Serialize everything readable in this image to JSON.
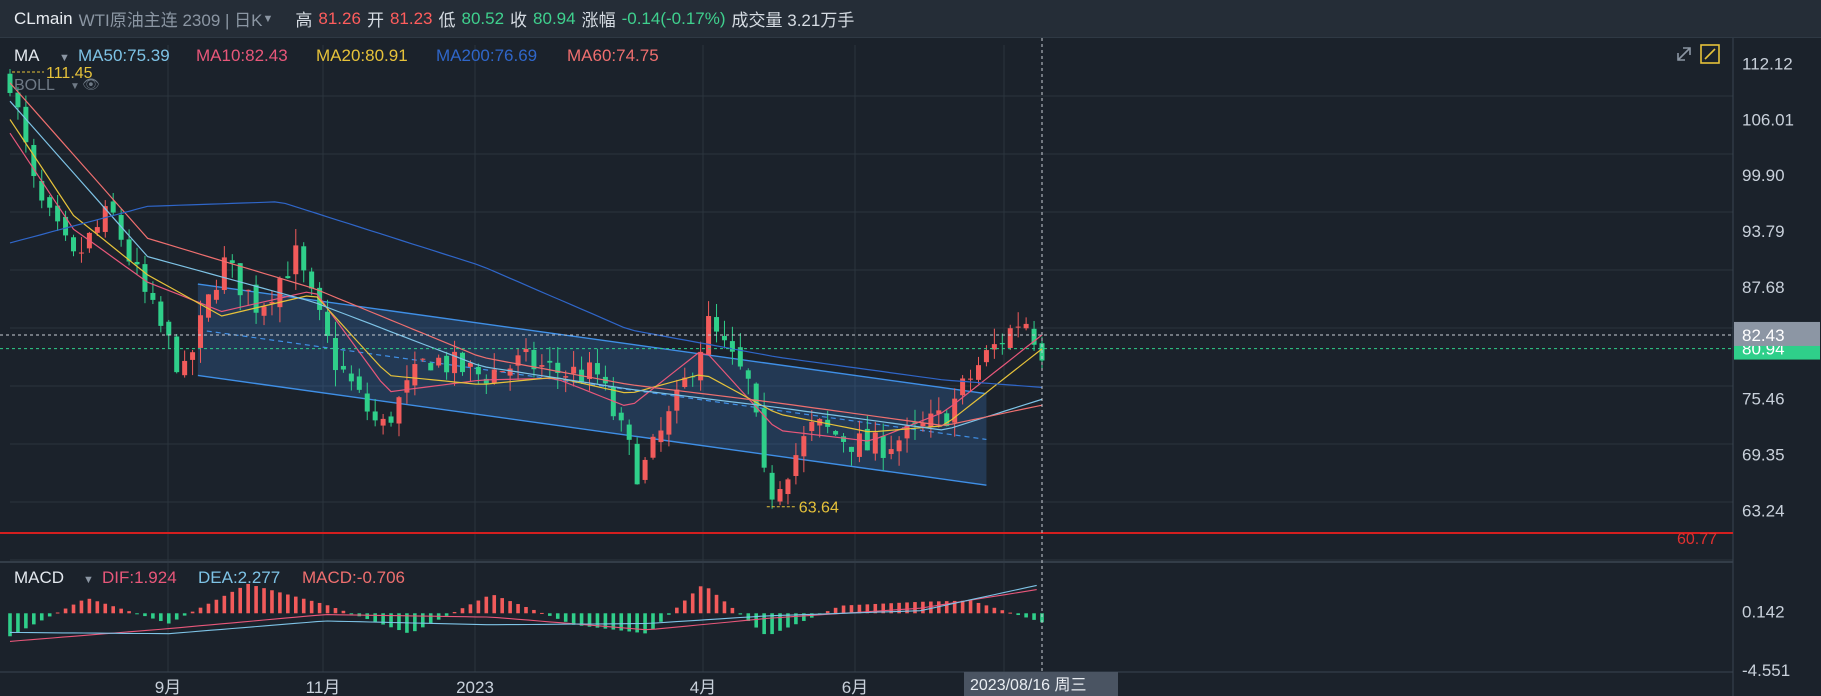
{
  "header": {
    "symbol": "CLmain",
    "name": "WTI原油主连 2309 | 日K",
    "high_label": "高",
    "high": "81.26",
    "open_label": "开",
    "open": "81.23",
    "low_label": "低",
    "low": "80.52",
    "close_label": "收",
    "close": "80.94",
    "change_label": "涨幅",
    "change": "-0.14(-0.17%)",
    "volume": "成交量 3.21万手"
  },
  "indicators": {
    "ma_title": "MA",
    "ma50": "MA50:75.39",
    "ma10": "MA10:82.43",
    "ma20": "MA20:80.91",
    "ma200": "MA200:76.69",
    "ma60": "MA60:74.75",
    "boll": "BOLL",
    "macd_title": "MACD",
    "dif": "DIF:1.924",
    "dea": "DEA:2.277",
    "macd": "MACD:-0.706"
  },
  "colors": {
    "up": "#f25b5b",
    "down": "#2fcf8a",
    "ma50": "#7ec3e6",
    "ma10": "#e8577a",
    "ma20": "#e6c23a",
    "ma200": "#2f66c9",
    "ma60": "#ef6f6f",
    "channel": "#3f8fe6",
    "bg": "#1b222b",
    "grid": "#2b343e"
  },
  "markers": {
    "high_mark": "111.45",
    "low_mark": "63.64",
    "support": "60.77",
    "cursor_date": "2023/08/16 周三"
  },
  "chart_data": [
    {
      "type": "line",
      "title": "",
      "ylim": [
        60.0,
        113.6
      ],
      "y_ticks": [
        "112.12",
        "106.01",
        "99.90",
        "93.79",
        "87.68",
        "82.43",
        "80.94",
        "75.46",
        "69.35",
        "63.24"
      ],
      "x_ticks": [
        "9月",
        "11月",
        "2023",
        "4月",
        "6月"
      ],
      "series": [
        {
          "name": "MA10",
          "x": [
            "2022-07-22",
            "2022-08-15",
            "2022-09-12",
            "2022-10-10",
            "2022-11-14",
            "2022-12-12",
            "2023-01-16",
            "2023-02-13",
            "2023-03-13",
            "2023-04-10",
            "2023-05-08",
            "2023-06-12",
            "2023-07-10",
            "2023-08-16"
          ],
          "values": [
            104.5,
            94.0,
            88.2,
            85.0,
            87.3,
            76.2,
            77.5,
            77.7,
            74.5,
            80.9,
            72.0,
            70.8,
            74.0,
            82.43
          ]
        },
        {
          "name": "MA20",
          "x": [
            "2022-07-22",
            "2022-08-15",
            "2022-09-12",
            "2022-10-10",
            "2022-11-14",
            "2022-12-12",
            "2023-01-16",
            "2023-02-13",
            "2023-03-13",
            "2023-04-10",
            "2023-05-08",
            "2023-06-12",
            "2023-07-10",
            "2023-08-16"
          ],
          "values": [
            106.0,
            95.5,
            89.0,
            84.5,
            86.9,
            78.0,
            77.0,
            77.8,
            76.0,
            78.2,
            73.8,
            71.8,
            72.5,
            80.91
          ]
        },
        {
          "name": "MA50",
          "x": [
            "2022-07-22",
            "2022-09-12",
            "2022-11-14",
            "2023-01-16",
            "2023-03-13",
            "2023-05-08",
            "2023-07-10",
            "2023-08-16"
          ],
          "values": [
            108.0,
            91.0,
            86.0,
            79.0,
            76.5,
            74.5,
            72.0,
            75.39
          ]
        },
        {
          "name": "MA60",
          "x": [
            "2022-07-22",
            "2022-09-12",
            "2022-11-14",
            "2023-01-16",
            "2023-03-13",
            "2023-05-08",
            "2023-07-10",
            "2023-08-16"
          ],
          "values": [
            110.0,
            93.0,
            87.5,
            80.0,
            77.0,
            75.0,
            72.5,
            74.75
          ]
        },
        {
          "name": "MA200",
          "x": [
            "2022-07-22",
            "2022-09-12",
            "2022-11-01",
            "2023-01-16",
            "2023-03-13",
            "2023-05-08",
            "2023-07-10",
            "2023-08-16"
          ],
          "values": [
            92.5,
            96.5,
            97.0,
            90.0,
            83.0,
            80.0,
            77.5,
            76.69
          ]
        }
      ],
      "price_path": {
        "x": [
          "2022-07-22",
          "2022-08-01",
          "2022-08-15",
          "2022-08-29",
          "2022-09-12",
          "2022-09-26",
          "2022-10-10",
          "2022-10-24",
          "2022-11-07",
          "2022-11-21",
          "2022-12-09",
          "2022-12-27",
          "2023-01-16",
          "2023-02-01",
          "2023-02-13",
          "2023-03-01",
          "2023-03-17",
          "2023-03-31",
          "2023-04-12",
          "2023-04-28",
          "2023-05-04",
          "2023-05-22",
          "2023-06-12",
          "2023-06-28",
          "2023-07-10",
          "2023-07-24",
          "2023-08-09",
          "2023-08-16"
        ],
        "values": [
          110.5,
          97.5,
          90.5,
          96.0,
          86.0,
          78.0,
          90.5,
          85.5,
          91.0,
          80.0,
          72.0,
          80.0,
          78.0,
          79.5,
          78.5,
          78.0,
          67.0,
          75.0,
          83.5,
          76.5,
          64.5,
          72.5,
          70.0,
          71.5,
          73.5,
          79.5,
          84.5,
          80.94
        ],
        "candle_step_days": 3
      },
      "channel": {
        "upper": {
          "x": [
            "2022-10-01",
            "2023-07-26"
          ],
          "values": [
            88.0,
            76.0
          ]
        },
        "middle": {
          "x": [
            "2022-10-01",
            "2023-07-26"
          ],
          "values": [
            83.0,
            71.0
          ]
        },
        "lower": {
          "x": [
            "2022-10-01",
            "2023-07-26"
          ],
          "values": [
            78.0,
            66.0
          ]
        }
      },
      "hlines": {
        "last_close": 80.94,
        "ma10_now": 82.43,
        "support": 60.77
      },
      "annotations": [
        {
          "text": "111.45",
          "x": "2022-07-22",
          "y": 111.45
        },
        {
          "text": "63.64",
          "x": "2023-05-04",
          "y": 63.64
        }
      ]
    },
    {
      "type": "bar",
      "title": "MACD",
      "ylim": [
        -4.6,
        3.0
      ],
      "y_ticks": [
        "0.142",
        "-4.551"
      ],
      "series": [
        {
          "name": "MACD",
          "x": [
            "2022-07-22",
            "2022-08-20",
            "2022-09-20",
            "2022-10-20",
            "2022-11-18",
            "2022-12-20",
            "2023-01-20",
            "2023-02-20",
            "2023-03-20",
            "2023-04-10",
            "2023-05-04",
            "2023-06-01",
            "2023-07-01",
            "2023-07-20",
            "2023-08-16"
          ],
          "values": [
            -1.8,
            1.2,
            -0.8,
            2.3,
            0.7,
            -1.6,
            1.5,
            -0.9,
            -1.6,
            2.3,
            -1.8,
            0.6,
            0.9,
            1.0,
            -0.706
          ]
        },
        {
          "name": "DIF",
          "x": [
            "2022-07-22",
            "2022-09-20",
            "2022-11-18",
            "2023-01-20",
            "2023-03-20",
            "2023-05-04",
            "2023-07-01",
            "2023-08-16"
          ],
          "values": [
            -2.2,
            -1.2,
            -0.1,
            -0.3,
            -1.3,
            -0.4,
            0.4,
            1.924
          ]
        },
        {
          "name": "DEA",
          "x": [
            "2022-07-22",
            "2022-09-20",
            "2022-11-18",
            "2023-01-20",
            "2023-03-20",
            "2023-05-04",
            "2023-07-01",
            "2023-08-16"
          ],
          "values": [
            -1.5,
            -1.6,
            -0.6,
            -0.9,
            -0.8,
            -0.2,
            0.2,
            2.277
          ]
        }
      ]
    }
  ]
}
